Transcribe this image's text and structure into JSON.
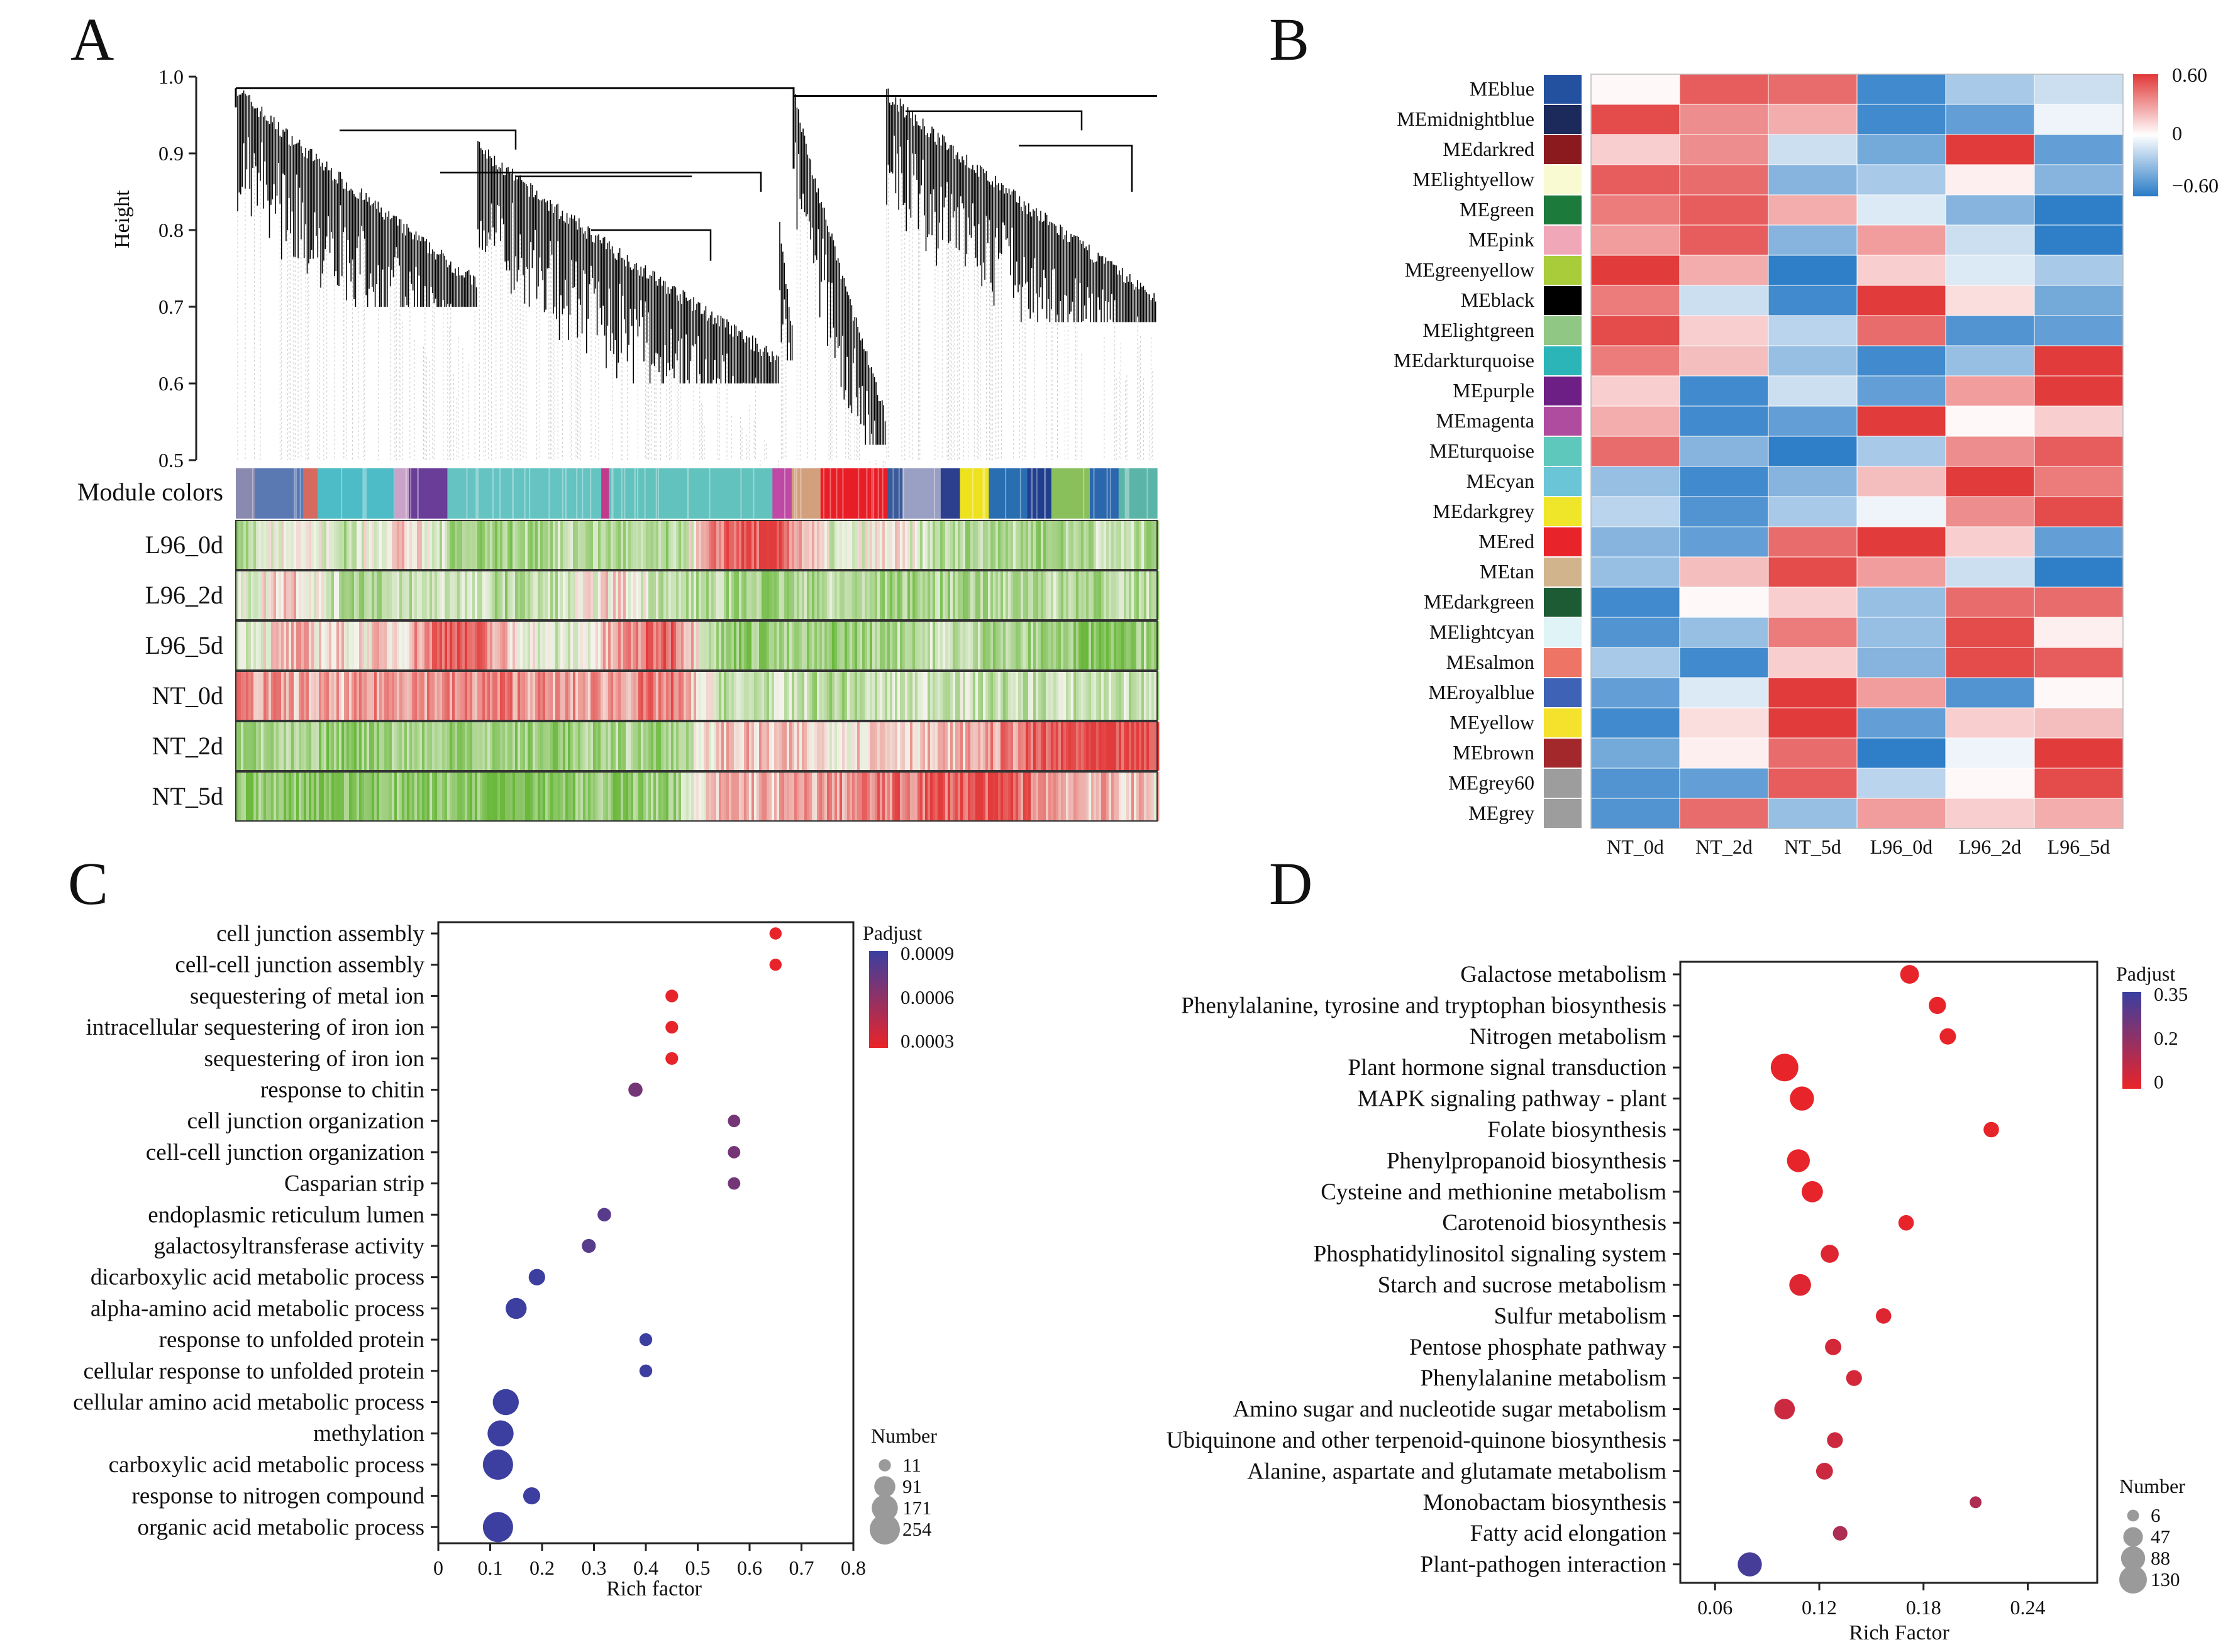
{
  "panels": [
    "A",
    "B",
    "C",
    "D"
  ],
  "colors": {
    "red": "#e23b3b",
    "white": "#ffffff",
    "blue": "#2f7fc8",
    "green": "#6ab83c",
    "padj_high": "#3c3f9f",
    "padj_low": "#e8242b",
    "dot_blue": "#5563b6",
    "grey": "#9a9a9a"
  },
  "chart_data": [
    {
      "panel": "A",
      "type": "heatmap",
      "title": "",
      "ylabel": "Height",
      "yticks": [
        "0.5",
        "0.6",
        "0.7",
        "0.8",
        "0.9",
        "1.0"
      ],
      "ylim": [
        0.5,
        1.0
      ],
      "module_colors_label": "Module colors",
      "module_colors": [
        "#8a8ab0",
        "#5a79b3",
        "#d66a5e",
        "#4dbcc6",
        "#c9a3c9",
        "#6a3e98",
        "#65c3c2",
        "#c23a8c",
        "#62c2bd",
        "#c049a5",
        "#d3a07e",
        "#e81d26",
        "#3a5a9a",
        "#9aa0c3",
        "#2c3f8f",
        "#eee21f",
        "#2a6eb2",
        "#1f3e8d",
        "#8ac05b",
        "#2b67ad",
        "#5ab4a7"
      ],
      "rows": [
        "L96_0d",
        "L96_2d",
        "L96_5d",
        "NT_0d",
        "NT_2d",
        "NT_5d"
      ],
      "row_profiles": [
        [
          -0.6,
          0.2,
          -0.4,
          0.3,
          -0.5,
          -0.6,
          -0.4,
          -0.5,
          -0.6,
          0.8,
          0.9,
          -0.3,
          0.1,
          -0.5,
          -0.4,
          -0.6,
          -0.3,
          -0.5
        ],
        [
          -0.3,
          0.4,
          -0.5,
          -0.4,
          -0.2,
          -0.5,
          -0.3,
          0.2,
          -0.4,
          -0.5,
          -0.6,
          -0.4,
          -0.6,
          -0.5,
          -0.5,
          -0.4,
          -0.5,
          -0.4
        ],
        [
          -0.2,
          0.3,
          0.1,
          0.2,
          1.0,
          0.2,
          -0.3,
          0.4,
          0.9,
          -0.7,
          -0.6,
          -0.7,
          -0.5,
          -0.3,
          -0.5,
          -0.6,
          -0.8,
          -0.4
        ],
        [
          0.5,
          0.4,
          0.3,
          0.6,
          0.5,
          0.6,
          0.4,
          0.5,
          0.6,
          -0.4,
          -0.3,
          -0.5,
          -0.3,
          -0.2,
          -0.4,
          -0.3,
          -0.3,
          -0.4
        ],
        [
          -0.5,
          -0.6,
          -0.7,
          -0.5,
          -0.6,
          -0.6,
          -0.7,
          -0.5,
          -0.6,
          0.3,
          0.2,
          0.1,
          0.3,
          0.2,
          0.5,
          0.8,
          0.9,
          0.9
        ],
        [
          -0.7,
          -0.7,
          -0.8,
          -0.7,
          -0.7,
          -0.8,
          -0.7,
          -0.7,
          -0.6,
          0.4,
          0.3,
          0.5,
          0.6,
          0.8,
          0.9,
          0.5,
          0.3,
          0.2
        ]
      ]
    },
    {
      "panel": "B",
      "type": "heatmap",
      "title": "",
      "columns": [
        "NT_0d",
        "NT_2d",
        "NT_5d",
        "L96_0d",
        "L96_2d",
        "L96_5d"
      ],
      "scale": {
        "min": -0.6,
        "max": 0.6,
        "ticks": [
          "0.60",
          "0",
          "−0.60"
        ]
      },
      "modules": [
        {
          "name": "MEblue",
          "color": "#2450a0",
          "values": [
            0.02,
            0.5,
            0.45,
            -0.55,
            -0.25,
            -0.15
          ]
        },
        {
          "name": "MEmidnightblue",
          "color": "#1b2a5a",
          "values": [
            0.55,
            0.35,
            0.25,
            -0.55,
            -0.45,
            -0.05
          ]
        },
        {
          "name": "MEdarkred",
          "color": "#8b1a1f",
          "values": [
            0.15,
            0.35,
            -0.15,
            -0.4,
            0.6,
            -0.45
          ]
        },
        {
          "name": "MElightyellow",
          "color": "#fafad2",
          "values": [
            0.5,
            0.45,
            -0.35,
            -0.25,
            0.05,
            -0.35
          ]
        },
        {
          "name": "MEgreen",
          "color": "#1c7a3a",
          "values": [
            0.4,
            0.5,
            0.25,
            -0.1,
            -0.35,
            -0.6
          ]
        },
        {
          "name": "MEpink",
          "color": "#f0a8b8",
          "values": [
            0.3,
            0.5,
            -0.35,
            0.3,
            -0.15,
            -0.6
          ]
        },
        {
          "name": "MEgreenyellow",
          "color": "#a8cc3a",
          "values": [
            0.6,
            0.25,
            -0.6,
            0.15,
            -0.1,
            -0.25
          ]
        },
        {
          "name": "MEblack",
          "color": "#000000",
          "values": [
            0.4,
            -0.15,
            -0.55,
            0.6,
            0.1,
            -0.4
          ]
        },
        {
          "name": "MElightgreen",
          "color": "#90c785",
          "values": [
            0.55,
            0.15,
            -0.2,
            0.45,
            -0.5,
            -0.45
          ]
        },
        {
          "name": "MEdarkturquoise",
          "color": "#2bb5b8",
          "values": [
            0.4,
            0.2,
            -0.3,
            -0.55,
            -0.3,
            0.6
          ]
        },
        {
          "name": "MEpurple",
          "color": "#6e1f85",
          "values": [
            0.15,
            -0.55,
            -0.15,
            -0.45,
            0.3,
            0.6
          ]
        },
        {
          "name": "MEmagenta",
          "color": "#b04ca0",
          "values": [
            0.25,
            -0.55,
            -0.45,
            0.6,
            0.02,
            0.15
          ]
        },
        {
          "name": "MEturquoise",
          "color": "#5ec8bc",
          "values": [
            0.45,
            -0.35,
            -0.6,
            -0.25,
            0.35,
            0.5
          ]
        },
        {
          "name": "MEcyan",
          "color": "#6ac6d6",
          "values": [
            -0.3,
            -0.55,
            -0.35,
            0.2,
            0.6,
            0.4
          ]
        },
        {
          "name": "MEdarkgrey",
          "color": "#f0e629",
          "values": [
            -0.2,
            -0.5,
            -0.25,
            -0.05,
            0.35,
            0.55
          ]
        },
        {
          "name": "MEred",
          "color": "#e8232a",
          "values": [
            -0.35,
            -0.45,
            0.45,
            0.6,
            0.15,
            -0.45
          ]
        },
        {
          "name": "MEtan",
          "color": "#d2b48c",
          "values": [
            -0.3,
            0.2,
            0.55,
            0.3,
            -0.15,
            -0.6
          ]
        },
        {
          "name": "MEdarkgreen",
          "color": "#1d5b34",
          "values": [
            -0.55,
            0.02,
            0.15,
            -0.3,
            0.45,
            0.45
          ]
        },
        {
          "name": "MElightcyan",
          "color": "#e0f4f8",
          "values": [
            -0.5,
            -0.3,
            0.4,
            -0.3,
            0.55,
            0.05
          ]
        },
        {
          "name": "MEsalmon",
          "color": "#ee7565",
          "values": [
            -0.25,
            -0.55,
            0.15,
            -0.35,
            0.55,
            0.5
          ]
        },
        {
          "name": "MEroyalblue",
          "color": "#3d62b6",
          "values": [
            -0.45,
            -0.1,
            0.6,
            0.3,
            -0.5,
            0.02
          ]
        },
        {
          "name": "MEyellow",
          "color": "#f4e22c",
          "values": [
            -0.55,
            0.1,
            0.6,
            -0.45,
            0.15,
            0.2
          ]
        },
        {
          "name": "MEbrown",
          "color": "#a3282c",
          "values": [
            -0.4,
            0.05,
            0.45,
            -0.6,
            -0.05,
            0.6
          ]
        },
        {
          "name": "MEgrey60",
          "color": "#9d9d9d",
          "values": [
            -0.5,
            -0.45,
            0.5,
            -0.2,
            0.02,
            0.55
          ]
        },
        {
          "name": "MEgrey",
          "color": "#9d9d9d",
          "values": [
            -0.5,
            0.45,
            -0.3,
            0.3,
            0.15,
            0.25
          ]
        }
      ]
    },
    {
      "panel": "C",
      "type": "scatter",
      "title": "",
      "xlabel": "Rich factor",
      "xlim": [
        0,
        0.8
      ],
      "xticks": [
        "0",
        "0.1",
        "0.2",
        "0.3",
        "0.4",
        "0.5",
        "0.6",
        "0.7",
        "0.8"
      ],
      "color_legend": {
        "title": "Padjust",
        "ticks": [
          "0.0009",
          "0.0006",
          "0.0003"
        ],
        "min": 0.0003,
        "max": 0.0009
      },
      "size_legend": {
        "title": "Number",
        "values": [
          "11",
          "91",
          "171",
          "254"
        ]
      },
      "terms": [
        {
          "label": "cell junction assembly",
          "x": 0.65,
          "padj": 0.0003,
          "number": 11
        },
        {
          "label": "cell-cell junction assembly",
          "x": 0.65,
          "padj": 0.0003,
          "number": 11
        },
        {
          "label": "sequestering of metal ion",
          "x": 0.45,
          "padj": 0.0003,
          "number": 13
        },
        {
          "label": "intracellular sequestering of iron ion",
          "x": 0.45,
          "padj": 0.0003,
          "number": 13
        },
        {
          "label": "sequestering of iron ion",
          "x": 0.45,
          "padj": 0.0003,
          "number": 13
        },
        {
          "label": "response to chitin",
          "x": 0.38,
          "padj": 0.0007,
          "number": 22
        },
        {
          "label": "cell junction organization",
          "x": 0.57,
          "padj": 0.0007,
          "number": 12
        },
        {
          "label": "cell-cell junction organization",
          "x": 0.57,
          "padj": 0.0007,
          "number": 12
        },
        {
          "label": "Casparian strip",
          "x": 0.57,
          "padj": 0.0007,
          "number": 12
        },
        {
          "label": "endoplasmic reticulum lumen",
          "x": 0.32,
          "padj": 0.0008,
          "number": 18
        },
        {
          "label": "galactosyltransferase activity",
          "x": 0.29,
          "padj": 0.0008,
          "number": 20
        },
        {
          "label": "dicarboxylic acid metabolic process",
          "x": 0.19,
          "padj": 0.0009,
          "number": 40
        },
        {
          "label": "alpha-amino acid metabolic process",
          "x": 0.15,
          "padj": 0.0009,
          "number": 90
        },
        {
          "label": "response to unfolded protein",
          "x": 0.4,
          "padj": 0.0009,
          "number": 14
        },
        {
          "label": "cellular response to unfolded protein",
          "x": 0.4,
          "padj": 0.0009,
          "number": 14
        },
        {
          "label": "cellular amino acid metabolic process",
          "x": 0.13,
          "padj": 0.0009,
          "number": 170
        },
        {
          "label": "methylation",
          "x": 0.12,
          "padj": 0.0009,
          "number": 170
        },
        {
          "label": "carboxylic acid metabolic process",
          "x": 0.115,
          "padj": 0.0009,
          "number": 254
        },
        {
          "label": "response to nitrogen compound",
          "x": 0.18,
          "padj": 0.0009,
          "number": 45
        },
        {
          "label": "organic acid metabolic process",
          "x": 0.115,
          "padj": 0.0009,
          "number": 254
        }
      ]
    },
    {
      "panel": "D",
      "type": "scatter",
      "title": "",
      "xlabel": "Rich Factor",
      "xlim": [
        0.04,
        0.28
      ],
      "xticks": [
        "0.06",
        "0.12",
        "0.18",
        "0.24"
      ],
      "color_legend": {
        "title": "Padjust",
        "ticks": [
          "0.35",
          "0.2",
          "0"
        ],
        "min": 0,
        "max": 0.35
      },
      "size_legend": {
        "title": "Number",
        "values": [
          "6",
          "47",
          "88",
          "130"
        ]
      },
      "terms": [
        {
          "label": "Galactose metabolism",
          "x": 0.172,
          "padj": 0.0,
          "number": 40
        },
        {
          "label": "Phenylalanine, tyrosine and tryptophan biosynthesis",
          "x": 0.188,
          "padj": 0.0,
          "number": 30
        },
        {
          "label": "Nitrogen metabolism",
          "x": 0.194,
          "padj": 0.0,
          "number": 25
        },
        {
          "label": "Plant hormone signal transduction",
          "x": 0.1,
          "padj": 0.0,
          "number": 130
        },
        {
          "label": "MAPK signaling pathway - plant",
          "x": 0.11,
          "padj": 0.0,
          "number": 88
        },
        {
          "label": "Folate biosynthesis",
          "x": 0.219,
          "padj": 0.0,
          "number": 20
        },
        {
          "label": "Phenylpropanoid biosynthesis",
          "x": 0.108,
          "padj": 0.0,
          "number": 75
        },
        {
          "label": "Cysteine and methionine metabolism",
          "x": 0.116,
          "padj": 0.0,
          "number": 60
        },
        {
          "label": "Carotenoid biosynthesis",
          "x": 0.17,
          "padj": 0.0,
          "number": 20
        },
        {
          "label": "Phosphatidylinositol signaling system",
          "x": 0.126,
          "padj": 0.02,
          "number": 35
        },
        {
          "label": "Starch and sucrose metabolism",
          "x": 0.109,
          "padj": 0.02,
          "number": 65
        },
        {
          "label": "Sulfur metabolism",
          "x": 0.157,
          "padj": 0.02,
          "number": 20
        },
        {
          "label": "Pentose phosphate pathway",
          "x": 0.128,
          "padj": 0.04,
          "number": 25
        },
        {
          "label": "Phenylalanine metabolism",
          "x": 0.14,
          "padj": 0.04,
          "number": 22
        },
        {
          "label": "Amino sugar and nucleotide sugar metabolism",
          "x": 0.1,
          "padj": 0.06,
          "number": 55
        },
        {
          "label": "Ubiquinone and other terpenoid-quinone biosynthesis",
          "x": 0.129,
          "padj": 0.06,
          "number": 22
        },
        {
          "label": "Alanine, aspartate and glutamate metabolism",
          "x": 0.123,
          "padj": 0.06,
          "number": 28
        },
        {
          "label": "Monobactam biosynthesis",
          "x": 0.21,
          "padj": 0.12,
          "number": 6
        },
        {
          "label": "Fatty acid elongation",
          "x": 0.132,
          "padj": 0.12,
          "number": 16
        },
        {
          "label": "Plant-pathogen interaction",
          "x": 0.08,
          "padj": 0.33,
          "number": 88
        }
      ]
    }
  ]
}
